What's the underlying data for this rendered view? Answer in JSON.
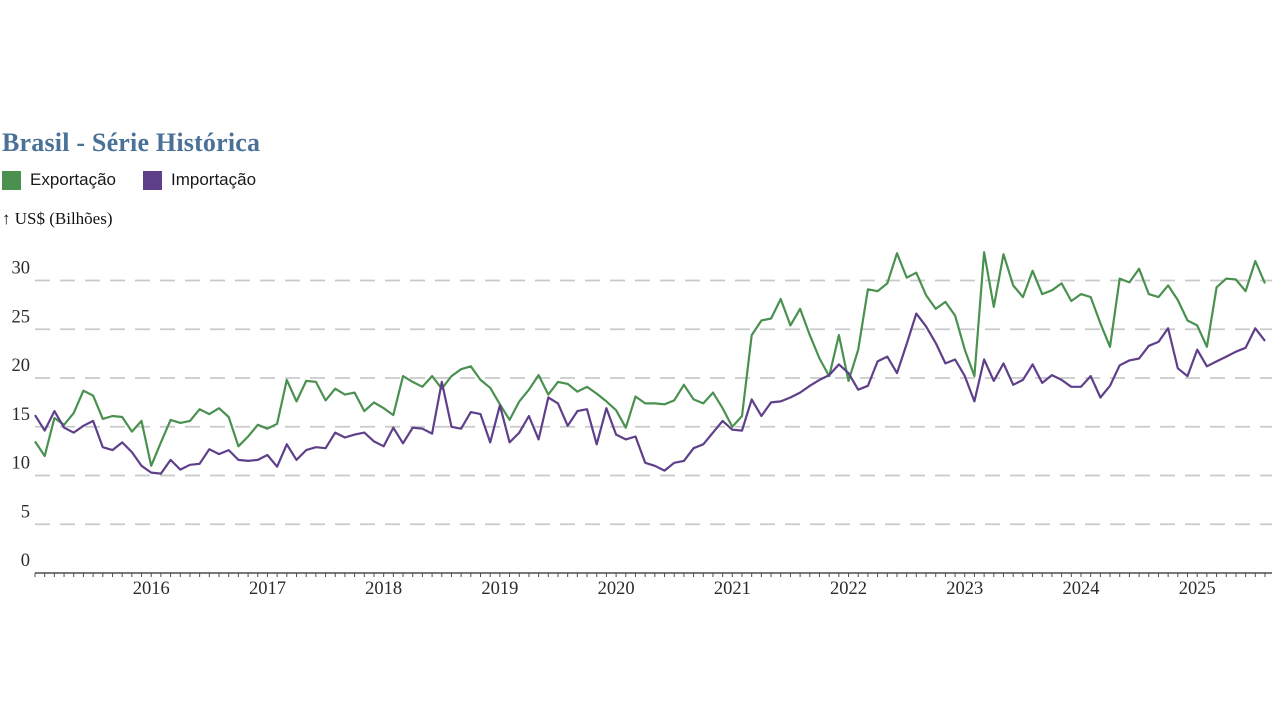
{
  "header": {
    "title": "Brasil - Série Histórica",
    "title_color": "#4a7298"
  },
  "legend": {
    "items": [
      {
        "label": "Exportação",
        "color": "#4a9150"
      },
      {
        "label": "Importação",
        "color": "#5e3f8a"
      }
    ]
  },
  "chart_data": {
    "type": "line",
    "title": "Brasil - Série Histórica",
    "y_axis_title": "↑ US$ (Bilhões)",
    "y_ticks": [
      0,
      5,
      10,
      15,
      20,
      25,
      30
    ],
    "ylim": [
      0,
      33.5
    ],
    "x_tick_labels": [
      "2016",
      "2017",
      "2018",
      "2019",
      "2020",
      "2021",
      "2022",
      "2023",
      "2024",
      "2025"
    ],
    "x_axis_note": "monthly data beginning Jan 2015, year ticks at January",
    "grid": "horizontal-dashed",
    "legend_position": "top-left",
    "grid_color": "#c9c9c9",
    "axis_color": "#4d4d4d",
    "series": [
      {
        "name": "Exportação",
        "color": "#4a9150",
        "values": [
          13.5,
          12.0,
          15.9,
          15.2,
          16.4,
          18.7,
          18.2,
          15.8,
          16.1,
          16.0,
          14.5,
          15.6,
          11.0,
          13.4,
          15.7,
          15.4,
          15.6,
          16.8,
          16.3,
          16.9,
          16.0,
          13.0,
          14.0,
          15.2,
          14.8,
          15.3,
          19.8,
          17.6,
          19.7,
          19.6,
          17.7,
          18.9,
          18.3,
          18.5,
          16.6,
          17.5,
          16.9,
          16.2,
          20.2,
          19.6,
          19.1,
          20.2,
          18.9,
          20.2,
          20.9,
          21.2,
          19.8,
          19.0,
          17.3,
          15.7,
          17.6,
          18.8,
          20.3,
          18.3,
          19.6,
          19.4,
          18.6,
          19.1,
          18.4,
          17.6,
          16.7,
          14.9,
          18.1,
          17.4,
          17.4,
          17.3,
          17.7,
          19.3,
          17.8,
          17.4,
          18.5,
          16.9,
          15.0,
          16.1,
          24.4,
          25.9,
          26.1,
          28.1,
          25.4,
          27.1,
          24.4,
          22.0,
          20.2,
          24.4,
          19.7,
          22.9,
          29.1,
          28.9,
          29.7,
          32.8,
          30.3,
          30.8,
          28.5,
          27.1,
          27.8,
          26.4,
          22.9,
          20.2,
          32.9,
          27.3,
          32.7,
          29.5,
          28.3,
          31.0,
          28.6,
          29.0,
          29.7,
          27.9,
          28.6,
          28.3,
          25.6,
          23.2,
          30.2,
          29.8,
          31.2,
          28.6,
          28.3,
          29.5,
          28.0,
          25.9,
          25.4,
          23.2,
          29.3,
          30.2,
          30.1,
          28.9,
          32.0,
          29.7
        ]
      },
      {
        "name": "Importação",
        "color": "#5e3f8a",
        "values": [
          16.2,
          14.6,
          16.6,
          14.9,
          14.4,
          15.1,
          15.6,
          12.9,
          12.6,
          13.4,
          12.4,
          11.0,
          10.3,
          10.2,
          11.6,
          10.6,
          11.1,
          11.2,
          12.7,
          12.2,
          12.6,
          11.6,
          11.5,
          11.6,
          12.1,
          10.9,
          13.2,
          11.6,
          12.6,
          12.9,
          12.8,
          14.4,
          13.9,
          14.2,
          14.4,
          13.5,
          13.0,
          14.9,
          13.3,
          14.9,
          14.8,
          14.3,
          19.6,
          15.0,
          14.8,
          16.5,
          16.3,
          13.4,
          17.2,
          13.4,
          14.4,
          16.1,
          13.7,
          18.0,
          17.4,
          15.1,
          16.6,
          16.8,
          13.2,
          16.9,
          14.2,
          13.7,
          14.0,
          11.3,
          11.0,
          10.5,
          11.3,
          11.5,
          12.8,
          13.2,
          14.4,
          15.6,
          14.7,
          14.6,
          17.8,
          16.1,
          17.5,
          17.6,
          18.0,
          18.5,
          19.2,
          19.8,
          20.3,
          21.4,
          20.5,
          18.8,
          19.2,
          21.7,
          22.2,
          20.5,
          23.5,
          26.6,
          25.3,
          23.6,
          21.5,
          21.9,
          20.2,
          17.6,
          21.9,
          19.7,
          21.5,
          19.3,
          19.8,
          21.4,
          19.5,
          20.3,
          19.8,
          19.1,
          19.1,
          20.2,
          18.0,
          19.2,
          21.3,
          21.8,
          22.0,
          23.3,
          23.7,
          25.1,
          21.0,
          20.2,
          22.9,
          21.2,
          21.7,
          22.2,
          22.7,
          23.1,
          25.1,
          23.8
        ]
      }
    ]
  }
}
